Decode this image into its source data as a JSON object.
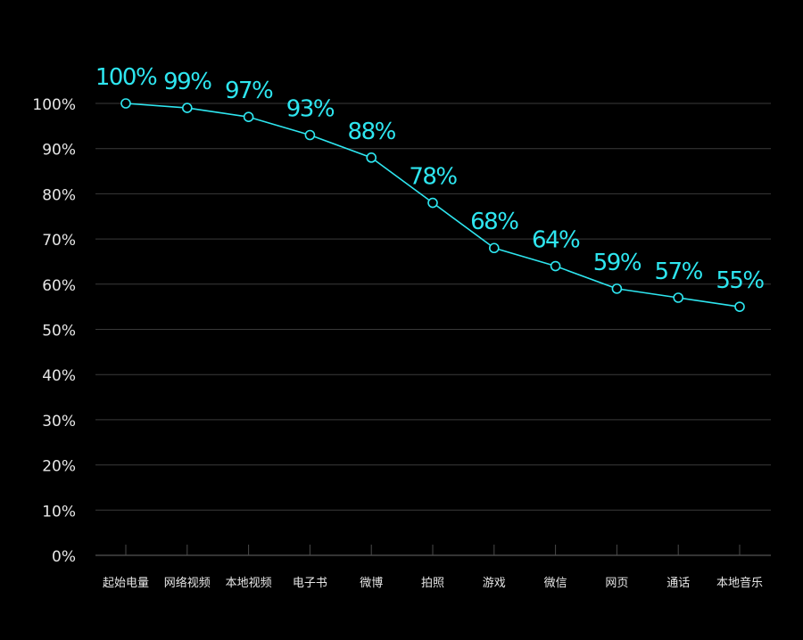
{
  "chart_data": {
    "type": "line",
    "categories": [
      "起始电量",
      "网络视频",
      "本地视频",
      "电子书",
      "微博",
      "拍照",
      "游戏",
      "微信",
      "网页",
      "通话",
      "本地音乐"
    ],
    "values": [
      100,
      99,
      97,
      93,
      88,
      78,
      68,
      64,
      59,
      57,
      55
    ],
    "data_labels": [
      "100%",
      "99%",
      "97%",
      "93%",
      "88%",
      "78%",
      "68%",
      "64%",
      "59%",
      "57%",
      "55%"
    ],
    "ylim": [
      0,
      100
    ],
    "yticks": [
      0,
      10,
      20,
      30,
      40,
      50,
      60,
      70,
      80,
      90,
      100
    ],
    "ytick_labels": [
      "0%",
      "10%",
      "20%",
      "30%",
      "40%",
      "50%",
      "60%",
      "70%",
      "80%",
      "90%",
      "100%"
    ],
    "title": "",
    "xlabel": "",
    "ylabel": "",
    "grid": true,
    "colors": {
      "background": "#000000",
      "line": "#2ee6f0",
      "grid": "#3a3a3a",
      "tick_text": "#e6e6e6"
    }
  }
}
